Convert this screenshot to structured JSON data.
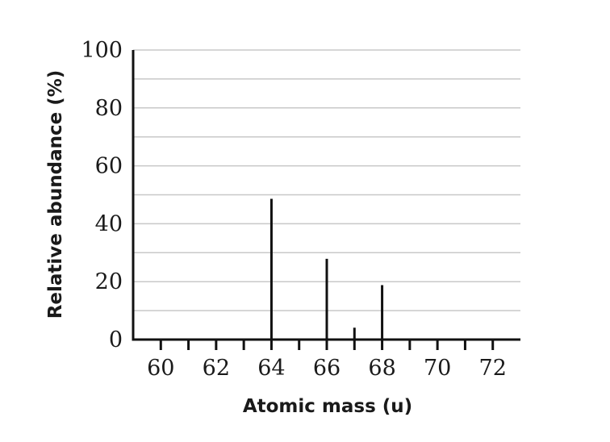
{
  "chart_data": {
    "type": "bar",
    "xlabel": "Atomic mass (u)",
    "ylabel": "Relative abundance (%)",
    "xlim": [
      59,
      73
    ],
    "ylim": [
      0,
      100
    ],
    "x_ticks": [
      60,
      62,
      64,
      66,
      68,
      70,
      72
    ],
    "x_minor_ticks": [
      61,
      63,
      65,
      67,
      69,
      71
    ],
    "y_ticks": [
      0,
      20,
      40,
      60,
      80,
      100
    ],
    "y_grid_step": 10,
    "grid": true,
    "x": [
      64,
      66,
      67,
      68
    ],
    "values": [
      48.6,
      27.9,
      4.1,
      18.8
    ]
  }
}
